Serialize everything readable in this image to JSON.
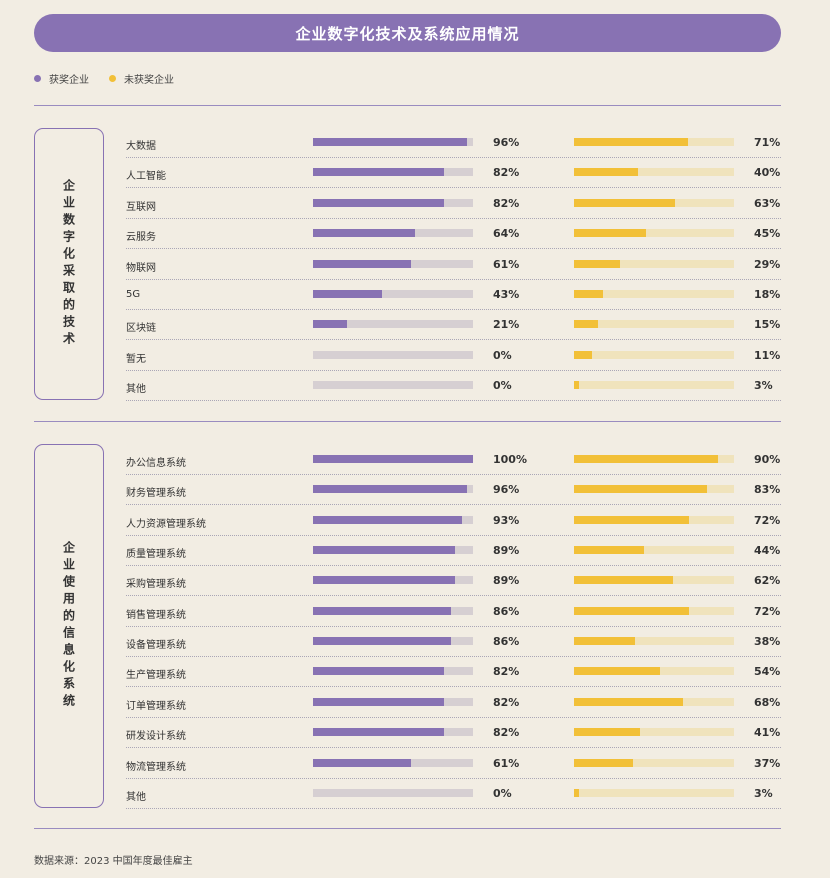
{
  "title": "企业数字化技术及系统应用情况",
  "legend": {
    "award": "获奖企业",
    "non_award": "未获奖企业"
  },
  "colors": {
    "award": "#8872b3",
    "non_award": "#f2c038",
    "award_track": "#d6cfd2",
    "non_award_track": "#f0e3bc"
  },
  "source": "数据来源：2023 中国年度最佳雇主",
  "chart_data": [
    {
      "type": "bar",
      "section_label": "企业数字化采取的技术",
      "categories": [
        "大数据",
        "人工智能",
        "互联网",
        "云服务",
        "物联网",
        "5G",
        "区块链",
        "暂无",
        "其他"
      ],
      "series": [
        {
          "name": "获奖企业",
          "values": [
            96,
            82,
            82,
            64,
            61,
            43,
            21,
            0,
            0
          ],
          "labels": [
            "96%",
            "82%",
            "82%",
            "64%",
            "61%",
            "43%",
            "21%",
            "0%",
            "0%"
          ]
        },
        {
          "name": "未获奖企业",
          "values": [
            71,
            40,
            63,
            45,
            29,
            18,
            15,
            11,
            3
          ],
          "labels": [
            "71%",
            "40%",
            "63%",
            "45%",
            "29%",
            "18%",
            "15%",
            "11%",
            "3%"
          ]
        }
      ],
      "xlim": [
        0,
        100
      ]
    },
    {
      "type": "bar",
      "section_label": "企业使用的信息化系统",
      "categories": [
        "办公信息系统",
        "财务管理系统",
        "人力资源管理系统",
        "质量管理系统",
        "采购管理系统",
        "销售管理系统",
        "设备管理系统",
        "生产管理系统",
        "订单管理系统",
        "研发设计系统",
        "物流管理系统",
        "其他"
      ],
      "series": [
        {
          "name": "获奖企业",
          "values": [
            100,
            96,
            93,
            89,
            89,
            86,
            86,
            82,
            82,
            82,
            61,
            0
          ],
          "labels": [
            "100%",
            "96%",
            "93%",
            "89%",
            "89%",
            "86%",
            "86%",
            "82%",
            "82%",
            "82%",
            "61%",
            "0%"
          ]
        },
        {
          "name": "未获奖企业",
          "values": [
            90,
            83,
            72,
            44,
            62,
            72,
            38,
            54,
            68,
            41,
            37,
            3
          ],
          "labels": [
            "90%",
            "83%",
            "72%",
            "44%",
            "62%",
            "72%",
            "38%",
            "54%",
            "68%",
            "41%",
            "37%",
            "3%"
          ]
        }
      ],
      "xlim": [
        0,
        100
      ]
    }
  ]
}
